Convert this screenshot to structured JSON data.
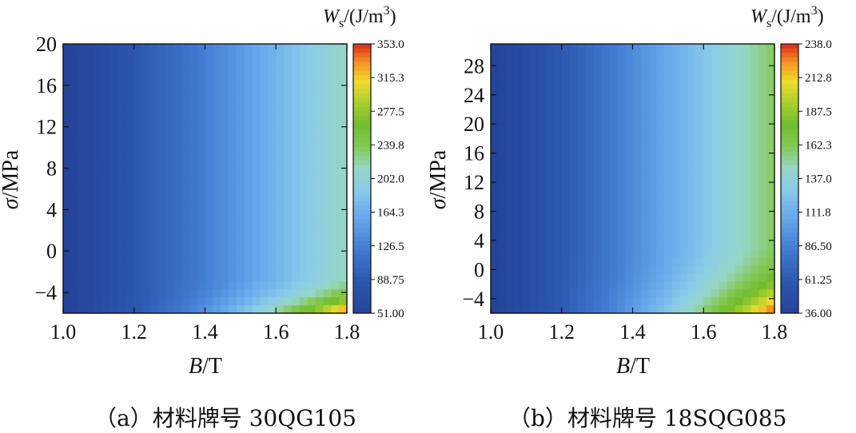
{
  "chart_data": [
    {
      "type": "heatmap",
      "caption": "（a）材料牌号 30QG105",
      "xlabel": "B/T",
      "ylabel": "σ/MPa",
      "colorbar_title": "Ws/(J/m3)",
      "x_ticks": [
        "1.0",
        "1.2",
        "1.4",
        "1.6",
        "1.8"
      ],
      "y_ticks": [
        "−4",
        "0",
        "4",
        "8",
        "12",
        "16",
        "20"
      ],
      "xlim": [
        1.0,
        1.8
      ],
      "ylim": [
        -6,
        20
      ],
      "colorbar_ticks": [
        "353.0",
        "315.3",
        "277.5",
        "239.8",
        "202.0",
        "164.3",
        "126.5",
        "88.75",
        "51.00"
      ],
      "value_range": [
        51.0,
        353.0
      ],
      "surface": {
        "w_low_B": 51.0,
        "w_high_B": 215.0,
        "w_corner": 353.0,
        "knee_sigma": -2.0
      }
    },
    {
      "type": "heatmap",
      "caption": "（b）材料牌号 18SQG085",
      "xlabel": "B/T",
      "ylabel": "σ/MPa",
      "colorbar_title": "Ws/(J/m3)",
      "x_ticks": [
        "1.0",
        "1.2",
        "1.4",
        "1.6",
        "1.8"
      ],
      "y_ticks": [
        "−4",
        "0",
        "4",
        "8",
        "12",
        "16",
        "20",
        "24",
        "28"
      ],
      "xlim": [
        1.0,
        1.8
      ],
      "ylim": [
        -6,
        31
      ],
      "colorbar_ticks": [
        "238.0",
        "212.8",
        "187.5",
        "162.3",
        "137.0",
        "111.8",
        "86.50",
        "61.25",
        "36.00"
      ],
      "value_range": [
        36.0,
        238.0
      ],
      "surface": {
        "w_low_B": 36.0,
        "w_high_B": 160.0,
        "w_corner": 238.0,
        "knee_sigma": 4.0
      }
    }
  ]
}
